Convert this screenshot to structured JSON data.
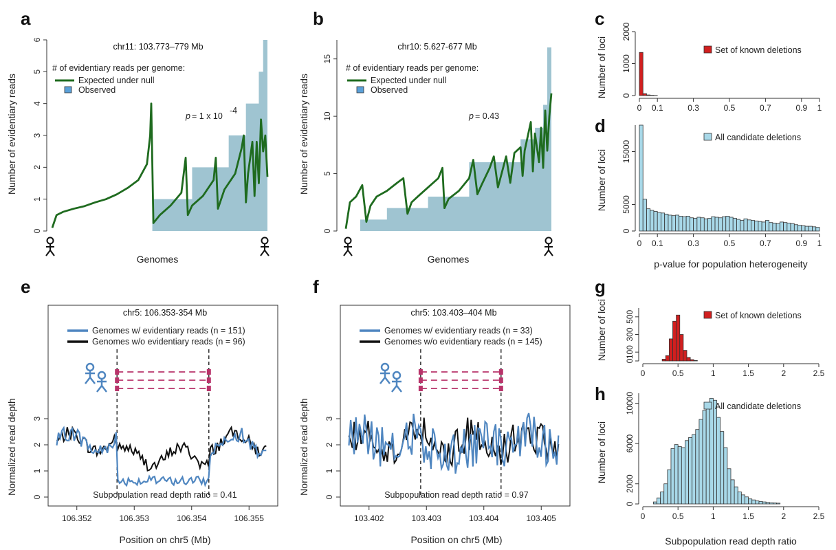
{
  "colors": {
    "green": "#1f6b1f",
    "observed": "#9fc4d1",
    "red": "#d11f1f",
    "lightblue": "#a8d8e8",
    "lineblue": "#4f86c0",
    "black": "#111111",
    "dashed_red": "#b8336a",
    "frame": "#333333"
  },
  "panels": {
    "a": {
      "label": "a",
      "title": "chr11: 103.773–779 Mb",
      "ylabel": "Number of evidentiary reads",
      "xlabel": "Genomes",
      "legend_header": "# of evidentiary reads per genome:",
      "legend_expected": "Expected under null",
      "legend_observed": "Observed",
      "p_prefix": "p",
      "p_text": " = 1 x 10",
      "p_exp": "-4"
    },
    "b": {
      "label": "b",
      "title": "chr10: 5.627-677 Mb",
      "ylabel": "Number of evidentiary reads",
      "xlabel": "Genomes",
      "legend_header": "# of evidentiary reads per genome:",
      "legend_expected": "Expected under null",
      "legend_observed": "Observed",
      "p_prefix": "p",
      "p_text": " = 0.43"
    },
    "c": {
      "label": "c",
      "ylabel": "Number of loci",
      "legend": "Set of known deletions"
    },
    "d": {
      "label": "d",
      "ylabel": "Number of loci",
      "xlabel": "p-value for population heterogeneity",
      "legend": "All candidate deletions"
    },
    "e": {
      "label": "e",
      "title": "chr5: 106.353-354 Mb",
      "ylabel": "Normalized read depth",
      "xlabel": "Position on chr5 (Mb)",
      "legend_with": "Genomes w/ evidentiary reads (n = 151)",
      "legend_without": "Genomes w/o evidentiary reads (n = 96)",
      "ratio_text": "Subpopulation read depth ratio = 0.41"
    },
    "f": {
      "label": "f",
      "title": "chr5: 103.403–404 Mb",
      "ylabel": "Normalized read depth",
      "xlabel": "Position on chr5 (Mb)",
      "legend_with": "Genomes w/ evidentiary reads (n = 33)",
      "legend_without": "Genomes w/o evidentiary reads (n = 145)",
      "ratio_text": "Subpopulation read depth ratio = 0.97"
    },
    "g": {
      "label": "g",
      "ylabel": "Number of loci",
      "legend": "Set of known deletions"
    },
    "h": {
      "label": "h",
      "ylabel": "Number of loci",
      "xlabel": "Subpopulation read depth ratio",
      "legend": "All candidate deletions"
    }
  },
  "chart_data": [
    {
      "id": "a",
      "type": "line",
      "ylim": [
        0,
        6
      ],
      "yticks": [
        "0",
        "1",
        "2",
        "3",
        "4",
        "5",
        "6"
      ],
      "series": [
        {
          "role": "expected",
          "x": [
            0,
            0.02,
            0.05,
            0.1,
            0.15,
            0.2,
            0.25,
            0.3,
            0.35,
            0.4,
            0.44,
            0.455,
            0.46,
            0.47,
            0.5,
            0.55,
            0.6,
            0.62,
            0.63,
            0.65,
            0.7,
            0.75,
            0.76,
            0.77,
            0.8,
            0.85,
            0.88,
            0.89,
            0.9,
            0.91,
            0.93,
            0.94,
            0.95,
            0.96,
            0.97,
            0.98,
            0.99,
            1.0
          ],
          "y": [
            0.1,
            0.5,
            0.6,
            0.7,
            0.78,
            0.9,
            1.0,
            1.15,
            1.35,
            1.6,
            2.1,
            3.0,
            4.0,
            0.25,
            0.5,
            0.8,
            1.2,
            2.3,
            0.5,
            0.8,
            1.1,
            1.6,
            2.3,
            0.7,
            1.3,
            1.8,
            2.6,
            3.0,
            0.9,
            1.8,
            2.8,
            1.1,
            2.8,
            1.5,
            3.5,
            2.5,
            3.0,
            1.7
          ]
        },
        {
          "role": "observed",
          "x": [
            0.465,
            0.65,
            0.65,
            0.82,
            0.82,
            0.9,
            0.9,
            0.96,
            0.96,
            0.98,
            0.98,
            1.0
          ],
          "y": [
            1,
            1,
            2,
            2,
            3,
            3,
            4,
            4,
            5,
            5,
            6,
            6
          ]
        }
      ]
    },
    {
      "id": "b",
      "type": "line",
      "ylim": [
        0,
        16
      ],
      "yticks": [
        "0",
        "5",
        "10",
        "15"
      ],
      "series": [
        {
          "role": "expected",
          "x": [
            0,
            0.02,
            0.05,
            0.08,
            0.1,
            0.12,
            0.15,
            0.2,
            0.25,
            0.28,
            0.3,
            0.32,
            0.35,
            0.4,
            0.45,
            0.47,
            0.48,
            0.5,
            0.55,
            0.6,
            0.62,
            0.64,
            0.66,
            0.7,
            0.72,
            0.74,
            0.78,
            0.8,
            0.82,
            0.85,
            0.86,
            0.87,
            0.9,
            0.91,
            0.92,
            0.94,
            0.95,
            0.96,
            0.97,
            0.98,
            0.99,
            1.0
          ],
          "y": [
            0.2,
            2.5,
            3.0,
            4.0,
            0.8,
            2.2,
            3.0,
            3.5,
            4.2,
            4.6,
            1.5,
            2.5,
            3.0,
            3.8,
            4.6,
            5.5,
            2.0,
            2.8,
            3.5,
            4.6,
            6.2,
            3.2,
            4.0,
            5.5,
            6.5,
            3.8,
            6.5,
            4.2,
            6.8,
            7.3,
            4.8,
            7.0,
            9.5,
            5.2,
            8.5,
            6.0,
            9.0,
            5.5,
            10.5,
            7.0,
            10.0,
            12.0
          ]
        },
        {
          "role": "observed",
          "x": [
            0.07,
            0.2,
            0.2,
            0.4,
            0.4,
            0.6,
            0.6,
            0.85,
            0.85,
            0.92,
            0.92,
            0.96,
            0.96,
            0.98,
            0.98,
            1.0
          ],
          "y": [
            1,
            1,
            2,
            2,
            3,
            3,
            6,
            6,
            8,
            8,
            9,
            9,
            11,
            11,
            16,
            16
          ]
        }
      ]
    },
    {
      "id": "c",
      "type": "bar",
      "xlim": [
        0,
        1
      ],
      "ylim": [
        0,
        2000
      ],
      "xticks": [
        "0",
        "0.1",
        "0.3",
        "0.5",
        "0.7",
        "0.9",
        "1"
      ],
      "yticks": [
        "0",
        "1000",
        "2000"
      ],
      "x": [
        0.01,
        0.03,
        0.05,
        0.07,
        0.09
      ],
      "values": [
        1350,
        60,
        20,
        10,
        5
      ]
    },
    {
      "id": "d",
      "type": "bar",
      "xlim": [
        0,
        1
      ],
      "ylim": [
        0,
        20000
      ],
      "xticks": [
        "0",
        "0.1",
        "0.3",
        "0.5",
        "0.7",
        "0.9",
        "1"
      ],
      "yticks": [
        "0",
        "5000",
        "15000"
      ],
      "values": [
        20000,
        6000,
        4200,
        3900,
        3700,
        3500,
        3400,
        3200,
        3000,
        2900,
        3000,
        2800,
        2700,
        2800,
        2500,
        2400,
        2600,
        2500,
        2300,
        2400,
        2700,
        2600,
        2500,
        2700,
        2800,
        2600,
        2400,
        2200,
        2000,
        2300,
        2100,
        2000,
        1900,
        1800,
        1700,
        2000,
        1600,
        1500,
        1400,
        1700,
        1600,
        1500,
        1400,
        1200,
        1100,
        1000,
        900,
        900,
        800,
        700
      ]
    },
    {
      "id": "e",
      "type": "line",
      "xlim": [
        106.3515,
        106.3555
      ],
      "ylim": [
        0,
        3.5
      ],
      "xticks": [
        "106.352",
        "106.353",
        "106.354",
        "106.355"
      ],
      "yticks": [
        "0",
        "1",
        "2",
        "3"
      ],
      "deletion": [
        106.3527,
        106.3543
      ]
    },
    {
      "id": "f",
      "type": "line",
      "xlim": [
        103.4015,
        103.4055
      ],
      "ylim": [
        0,
        3.5
      ],
      "xticks": [
        "103.402",
        "103.403",
        "103.404",
        "103.405"
      ],
      "yticks": [
        "0",
        "1",
        "2",
        "3"
      ],
      "deletion": [
        103.4029,
        103.4043
      ]
    },
    {
      "id": "g",
      "type": "bar",
      "xlim": [
        0,
        2.5
      ],
      "ylim": [
        0,
        600
      ],
      "xticks": [
        "0",
        "0.5",
        "1",
        "1.5",
        "2",
        "2.5"
      ],
      "yticks": [
        "0",
        "100",
        "300",
        "500"
      ],
      "x": [
        0.3,
        0.35,
        0.4,
        0.45,
        0.5,
        0.55,
        0.6,
        0.65,
        0.7,
        0.75
      ],
      "values": [
        20,
        60,
        250,
        450,
        520,
        300,
        120,
        40,
        15,
        5
      ]
    },
    {
      "id": "h",
      "type": "bar",
      "xlim": [
        0,
        2.5
      ],
      "ylim": [
        0,
        11000
      ],
      "xticks": [
        "0",
        "0.5",
        "1",
        "1.5",
        "2",
        "2.5"
      ],
      "yticks": [
        "0",
        "2000",
        "6000",
        "10000"
      ],
      "x": [
        0.175,
        0.225,
        0.275,
        0.325,
        0.375,
        0.425,
        0.475,
        0.525,
        0.575,
        0.625,
        0.675,
        0.725,
        0.775,
        0.825,
        0.875,
        0.925,
        0.975,
        1.025,
        1.075,
        1.125,
        1.175,
        1.225,
        1.275,
        1.325,
        1.375,
        1.425,
        1.475,
        1.525,
        1.575,
        1.625,
        1.675,
        1.725,
        1.775,
        1.825,
        1.875,
        1.925
      ],
      "values": [
        200,
        600,
        1200,
        2000,
        3400,
        5500,
        5900,
        5700,
        5600,
        6300,
        6600,
        6900,
        7400,
        8400,
        9300,
        9900,
        10500,
        10300,
        8600,
        7200,
        5600,
        3500,
        2400,
        1700,
        1200,
        900,
        700,
        500,
        400,
        300,
        250,
        200,
        150,
        120,
        100,
        80
      ]
    }
  ]
}
